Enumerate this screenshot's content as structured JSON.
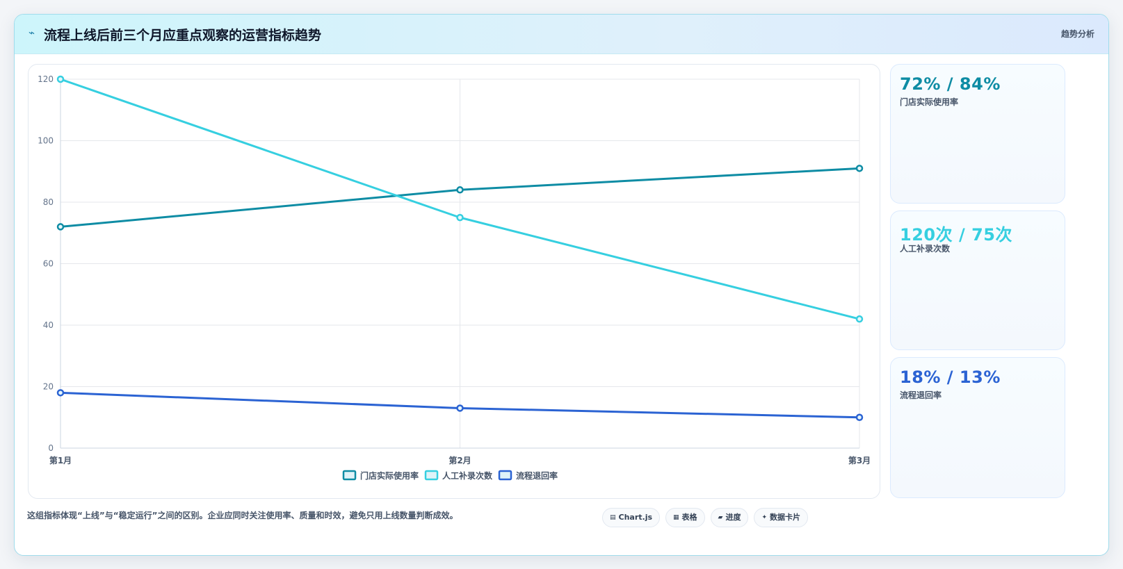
{
  "header": {
    "icon": "bolt-icon",
    "title": "流程上线后前三个月应重点观察的运营指标趋势",
    "tag": "趋势分析"
  },
  "chart_data": {
    "type": "line",
    "categories": [
      "第1月",
      "第2月",
      "第3月"
    ],
    "yticks": [
      "0",
      "20",
      "40",
      "60",
      "80",
      "100",
      "120"
    ],
    "ylim": [
      0,
      120
    ],
    "grid": true,
    "legend_position": "bottom",
    "series": [
      {
        "name": "门店实际使用率",
        "values": [
          72,
          84,
          91
        ],
        "color": "#0e8ca4"
      },
      {
        "name": "人工补录次数",
        "values": [
          120,
          75,
          42
        ],
        "color": "#36cfe0"
      },
      {
        "name": "流程退回率",
        "values": [
          18,
          13,
          10
        ],
        "color": "#2b63d3"
      }
    ]
  },
  "kpis": [
    {
      "value": "72% / 84%",
      "label": "门店实际使用率",
      "color": "#0e8ca4"
    },
    {
      "value": "120次 / 75次",
      "label": "人工补录次数",
      "color": "#36cfe0"
    },
    {
      "value": "18% / 13%",
      "label": "流程退回率",
      "color": "#2b63d3"
    }
  ],
  "footer": {
    "note": "这组指标体现“上线”与“稳定运行”之间的区别。企业应同时关注使用率、质量和时效，避免只用上线数量判断成效。",
    "chips": [
      {
        "icon": "chart-icon",
        "label": "Chart.js"
      },
      {
        "icon": "table-icon",
        "label": "表格"
      },
      {
        "icon": "progress-icon",
        "label": "进度"
      },
      {
        "icon": "sparkle-icon",
        "label": "数据卡片"
      }
    ]
  }
}
